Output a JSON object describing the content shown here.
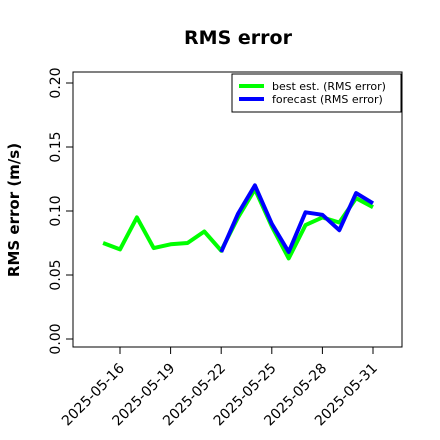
{
  "chart_data": {
    "type": "line",
    "title": "RMS error",
    "ylabel": "RMS error (m/s)",
    "xlabel": "",
    "ylim": [
      0,
      0.21
    ],
    "yticks": [
      0.0,
      0.05,
      0.1,
      0.15,
      0.2
    ],
    "ytick_labels": [
      "0.00",
      "0.05",
      "0.10",
      "0.15",
      "0.20"
    ],
    "xticks": [
      "2025-05-16",
      "2025-05-19",
      "2025-05-22",
      "2025-05-25",
      "2025-05-28",
      "2025-05-31"
    ],
    "highlighted_xtick": "2025-05-22",
    "highlight_color": "#228b22",
    "grid": false,
    "legend_position": "top-right",
    "x": [
      "2025-05-15",
      "2025-05-16",
      "2025-05-17",
      "2025-05-18",
      "2025-05-19",
      "2025-05-20",
      "2025-05-21",
      "2025-05-22",
      "2025-05-23",
      "2025-05-24",
      "2025-05-25",
      "2025-05-26",
      "2025-05-27",
      "2025-05-28",
      "2025-05-29",
      "2025-05-30",
      "2025-05-31"
    ],
    "series": [
      {
        "name": "best est. (RMS error)",
        "color": "#00ff00",
        "values": [
          0.075,
          0.07,
          0.095,
          0.071,
          0.074,
          0.075,
          0.084,
          0.069,
          0.095,
          0.117,
          0.088,
          0.063,
          0.089,
          0.095,
          0.091,
          0.11,
          0.103
        ]
      },
      {
        "name": "forecast (RMS error)",
        "color": "#0000ff",
        "values": [
          null,
          null,
          null,
          null,
          null,
          null,
          null,
          0.068,
          0.098,
          0.12,
          0.09,
          0.068,
          0.099,
          0.097,
          0.085,
          0.114,
          0.106
        ]
      }
    ]
  }
}
